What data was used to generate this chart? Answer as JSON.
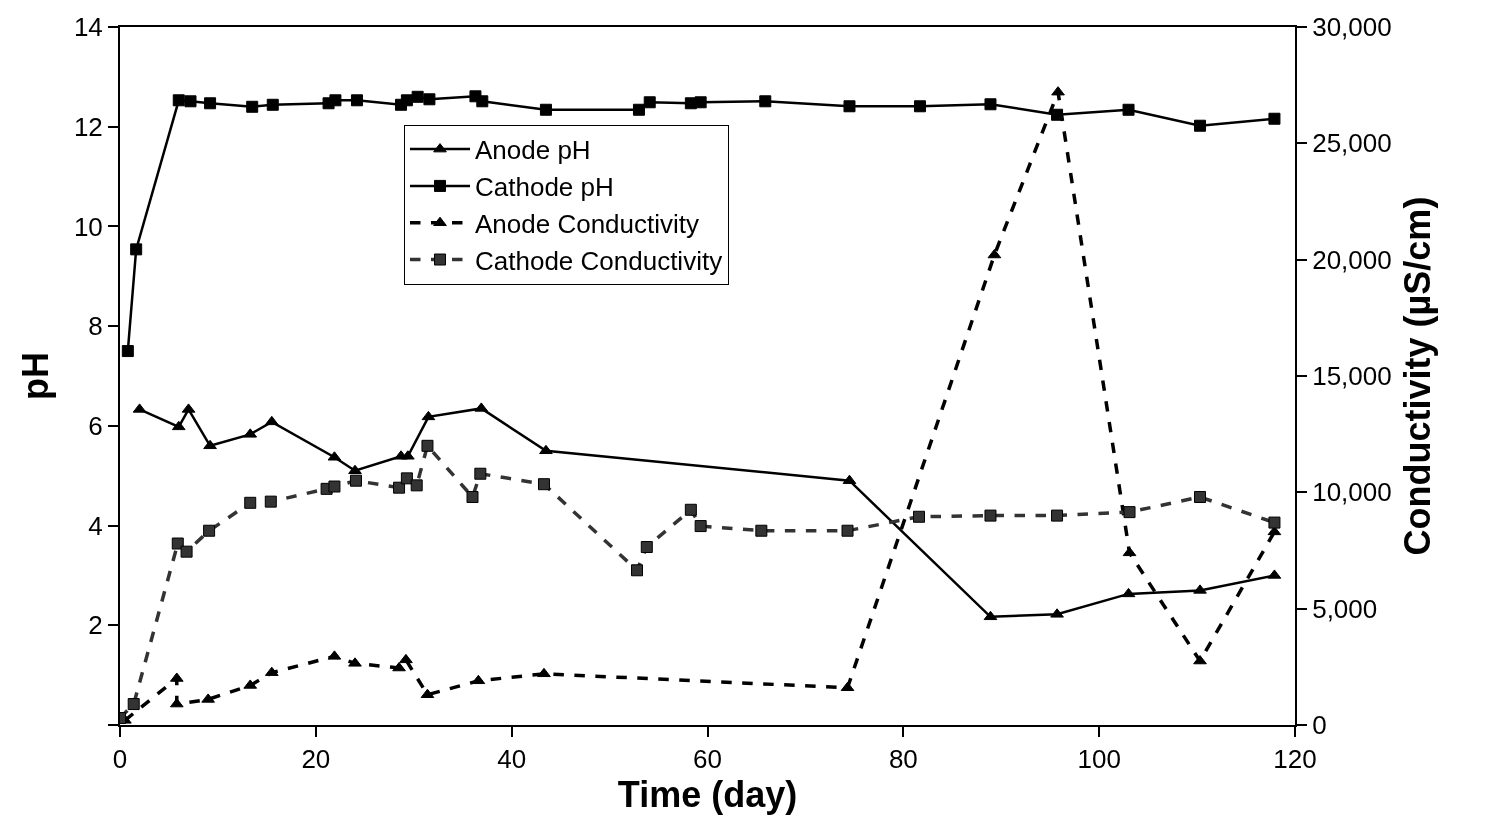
{
  "chart_data": {
    "type": "line",
    "xlabel": "Time (day)",
    "ylabel": "pH",
    "y2label": "Conductivity (µS/cm)",
    "xlim": [
      0,
      120
    ],
    "xticks": [
      0,
      20,
      40,
      60,
      80,
      100,
      120
    ],
    "ylim": [
      0,
      14
    ],
    "yticks": [
      {
        "value": 0,
        "label": null
      },
      2,
      4,
      6,
      8,
      10,
      12,
      14
    ],
    "y2lim": [
      0,
      30000
    ],
    "y2ticks": [
      {
        "value": 0,
        "label": "0"
      },
      {
        "value": 5000,
        "label": "5,000"
      },
      {
        "value": 10000,
        "label": "10,000"
      },
      {
        "value": 15000,
        "label": "15,000"
      },
      {
        "value": 20000,
        "label": "20,000"
      },
      {
        "value": 25000,
        "label": "25,000"
      },
      {
        "value": 30000,
        "label": "30,000"
      }
    ],
    "legend": "top",
    "series": [
      {
        "name": "Anode pH",
        "color": "#000000",
        "marker": "triangle",
        "line_style": "solid",
        "x": [
          2.0,
          6.0,
          7.0,
          9.2,
          13.3,
          15.5,
          21.9,
          24.0,
          28.7,
          29.4,
          31.5,
          36.9,
          43.5,
          74.5,
          88.9,
          95.7,
          103,
          110.3,
          117.9
        ],
        "values": [
          6.33,
          5.98,
          6.33,
          5.6,
          5.83,
          6.08,
          5.37,
          5.1,
          5.39,
          5.39,
          6.18,
          6.35,
          5.5,
          4.9,
          2.17,
          2.22,
          2.63,
          2.7,
          3.0
        ]
      },
      {
        "name": "Cathode pH",
        "color": "#000000",
        "marker": "square",
        "line_style": "solid",
        "x": [
          0.8,
          1.65,
          6.0,
          7.2,
          9.2,
          13.5,
          15.6,
          21.3,
          22.0,
          24.2,
          28.7,
          29.3,
          30.4,
          31.6,
          36.3,
          37.0,
          43.5,
          53.0,
          54.1,
          58.3,
          59.3,
          65.9,
          74.5,
          81.7,
          88.9,
          95.7,
          103,
          110.3,
          117.9
        ],
        "values": [
          7.5,
          9.54,
          12.53,
          12.51,
          12.47,
          12.4,
          12.44,
          12.47,
          12.53,
          12.53,
          12.44,
          12.53,
          12.6,
          12.55,
          12.61,
          12.51,
          12.34,
          12.34,
          12.49,
          12.47,
          12.49,
          12.51,
          12.41,
          12.41,
          12.45,
          12.24,
          12.34,
          12.02,
          12.16
        ]
      },
      {
        "name": "Anode Conductivity",
        "color": "#000000",
        "marker": "triangle",
        "line_style": "dashed",
        "axis": "y2",
        "x": [
          0.5,
          5.8,
          5.8,
          9.0,
          13.3,
          15.5,
          21.9,
          24.0,
          28.5,
          29.2,
          31.4,
          36.6,
          43.3,
          74.3,
          89.3,
          95.8,
          103.1,
          110.3,
          117.9
        ],
        "values": [
          200,
          2000,
          900,
          1100,
          1700,
          2250,
          2950,
          2650,
          2450,
          2800,
          1300,
          1900,
          2200,
          1600,
          20200,
          27200,
          7400,
          2750,
          8300
        ]
      },
      {
        "name": "Cathode Conductivity",
        "color": "#333333",
        "marker": "square",
        "line_style": "dashed",
        "axis": "y2",
        "x": [
          0.0,
          1.4,
          5.9,
          6.8,
          9.1,
          13.3,
          15.4,
          21.1,
          21.9,
          24.1,
          28.5,
          29.3,
          30.3,
          31.4,
          36.0,
          36.8,
          43.3,
          52.8,
          53.8,
          58.3,
          59.3,
          65.5,
          74.3,
          81.6,
          88.9,
          95.7,
          103.1,
          110.3,
          117.9
        ],
        "values": [
          300,
          900,
          7800,
          7450,
          8350,
          9550,
          9600,
          10150,
          10250,
          10500,
          10200,
          10600,
          10300,
          12000,
          9800,
          10800,
          10350,
          6650,
          7650,
          9250,
          8550,
          8350,
          8350,
          8950,
          9000,
          9000,
          9150,
          9800,
          8700
        ]
      }
    ]
  }
}
